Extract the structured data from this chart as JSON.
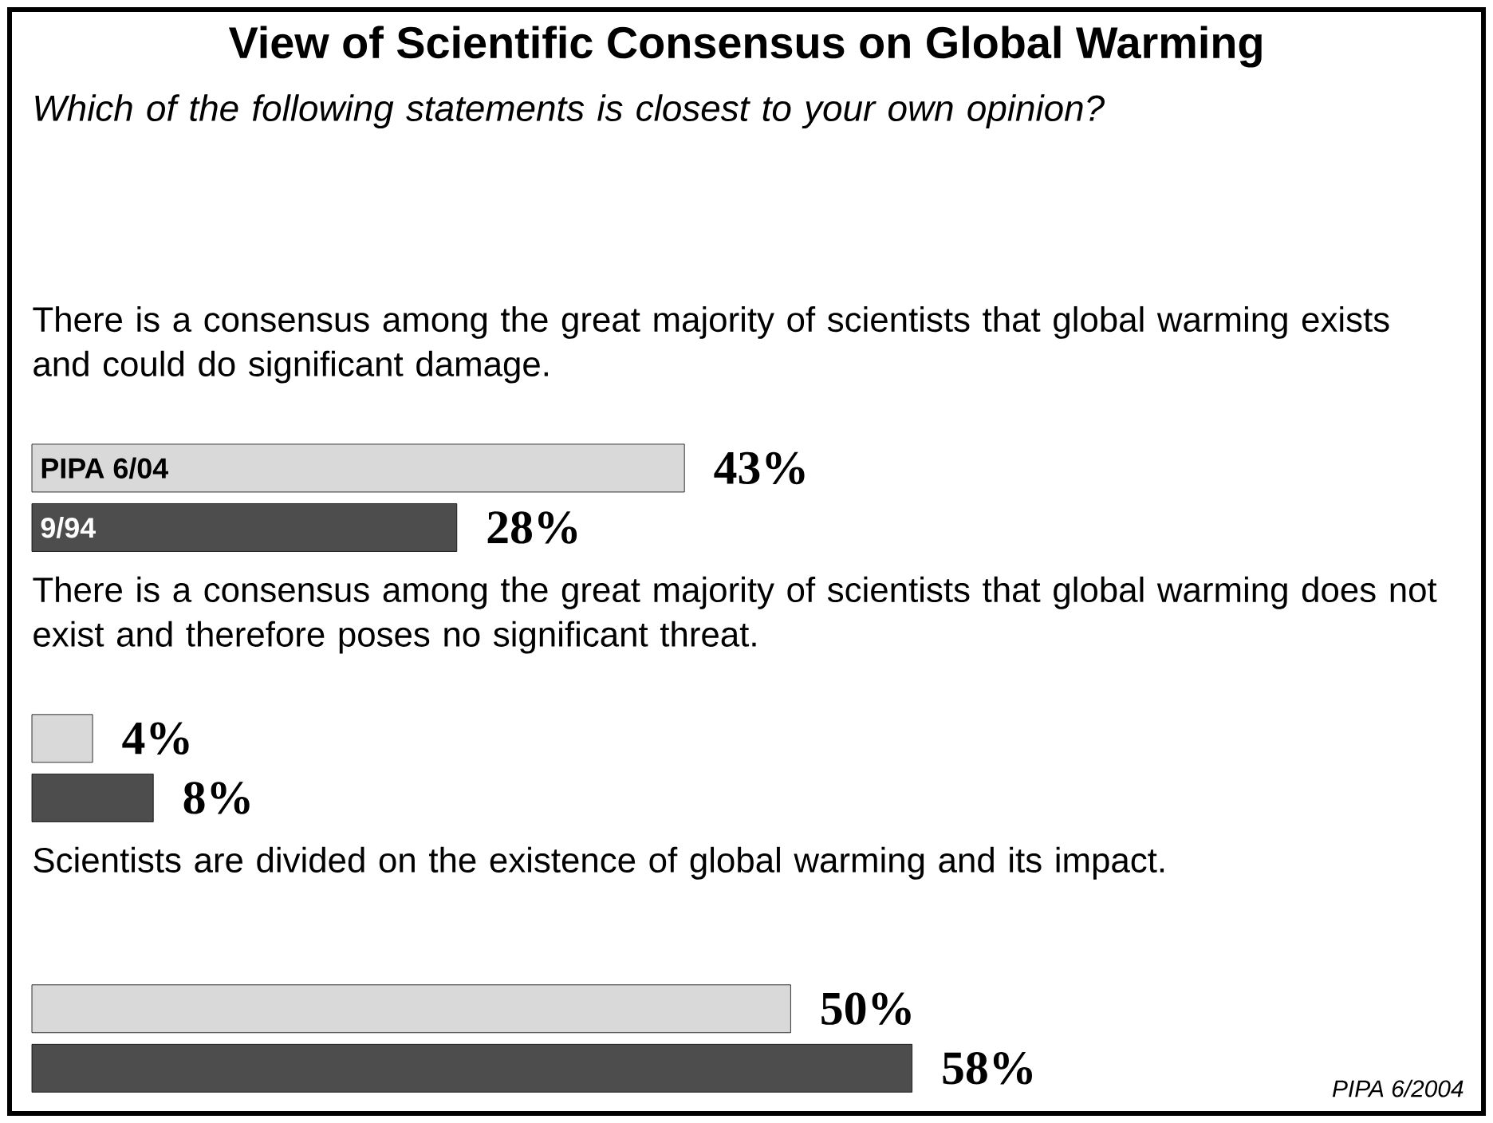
{
  "chart_data": {
    "type": "bar",
    "orientation": "horizontal",
    "title": "View of Scientific Consensus on Global Warming",
    "subtitle": "Which of the following statements is closest to your own opinion?",
    "categories": [
      "There is a consensus among the great majority of scientists that global warming exists and could do significant damage.",
      "There is a consensus among the great majority of scientists that global warming does not exist and therefore poses no significant threat.",
      "Scientists are divided on the existence of global warming and its impact."
    ],
    "series": [
      {
        "name": "PIPA 6/04",
        "color": "#d9d9d9",
        "values": [
          43,
          4,
          50
        ],
        "value_labels": [
          "43%",
          "4%",
          "50%"
        ]
      },
      {
        "name": "9/94",
        "color": "#4d4d4d",
        "values": [
          28,
          8,
          58
        ],
        "value_labels": [
          "28%",
          "8%",
          "58%"
        ]
      }
    ],
    "annotations": [
      "PIPA 6/2004"
    ]
  }
}
